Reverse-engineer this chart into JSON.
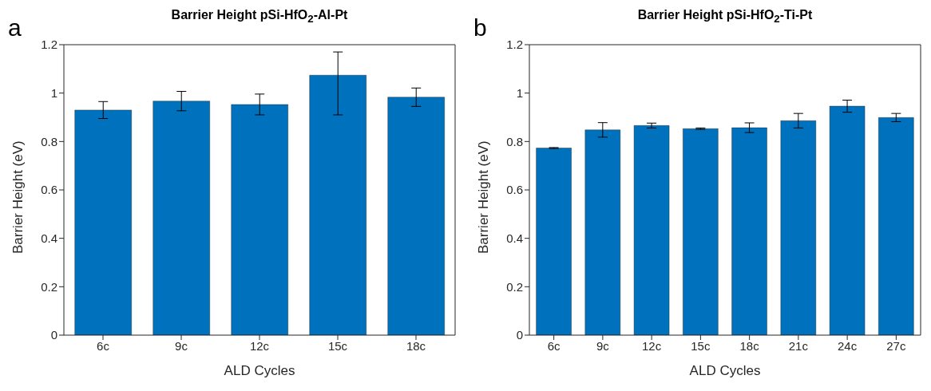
{
  "chart_data": [
    {
      "type": "bar",
      "title": "Barrier Height pSi-HfO$_{2}$-Al-Pt",
      "xlabel": "ALD Cycles",
      "ylabel": "Barrier Height (eV)",
      "annotations": [
        "a"
      ],
      "categories": [
        "6c",
        "9c",
        "12c",
        "15c",
        "18c"
      ],
      "series": [
        {
          "color": "#0072bd",
          "values": [
            0.93,
            0.967,
            0.953,
            1.074,
            0.983
          ],
          "errors": [
            0.035,
            0.04,
            0.043,
            [
              0.91,
              1.17
            ],
            0.038
          ]
        }
      ],
      "ylim": [
        0,
        1.2
      ],
      "yticks": [
        0,
        0.2,
        0.4,
        0.6,
        0.8,
        1,
        1.2
      ],
      "grid": false,
      "legend": false
    },
    {
      "type": "bar",
      "title": "Barrier Height pSi-HfO$_{2}$-Ti-Pt",
      "xlabel": "ALD Cycles",
      "ylabel": "Barrier Height (eV)",
      "annotations": [
        "b"
      ],
      "categories": [
        "6c",
        "9c",
        "12c",
        "15c",
        "18c",
        "21c",
        "24c",
        "27c"
      ],
      "series": [
        {
          "color": "#0072bd",
          "values": [
            0.773,
            0.848,
            0.866,
            0.853,
            0.857,
            0.886,
            0.946,
            0.899
          ],
          "errors": [
            0.002,
            0.03,
            0.01,
            0.003,
            0.02,
            0.03,
            0.025,
            0.017
          ]
        }
      ],
      "ylim": [
        0,
        1.2
      ],
      "yticks": [
        0,
        0.2,
        0.4,
        0.6,
        0.8,
        1,
        1.2
      ],
      "grid": false,
      "legend": false
    }
  ]
}
